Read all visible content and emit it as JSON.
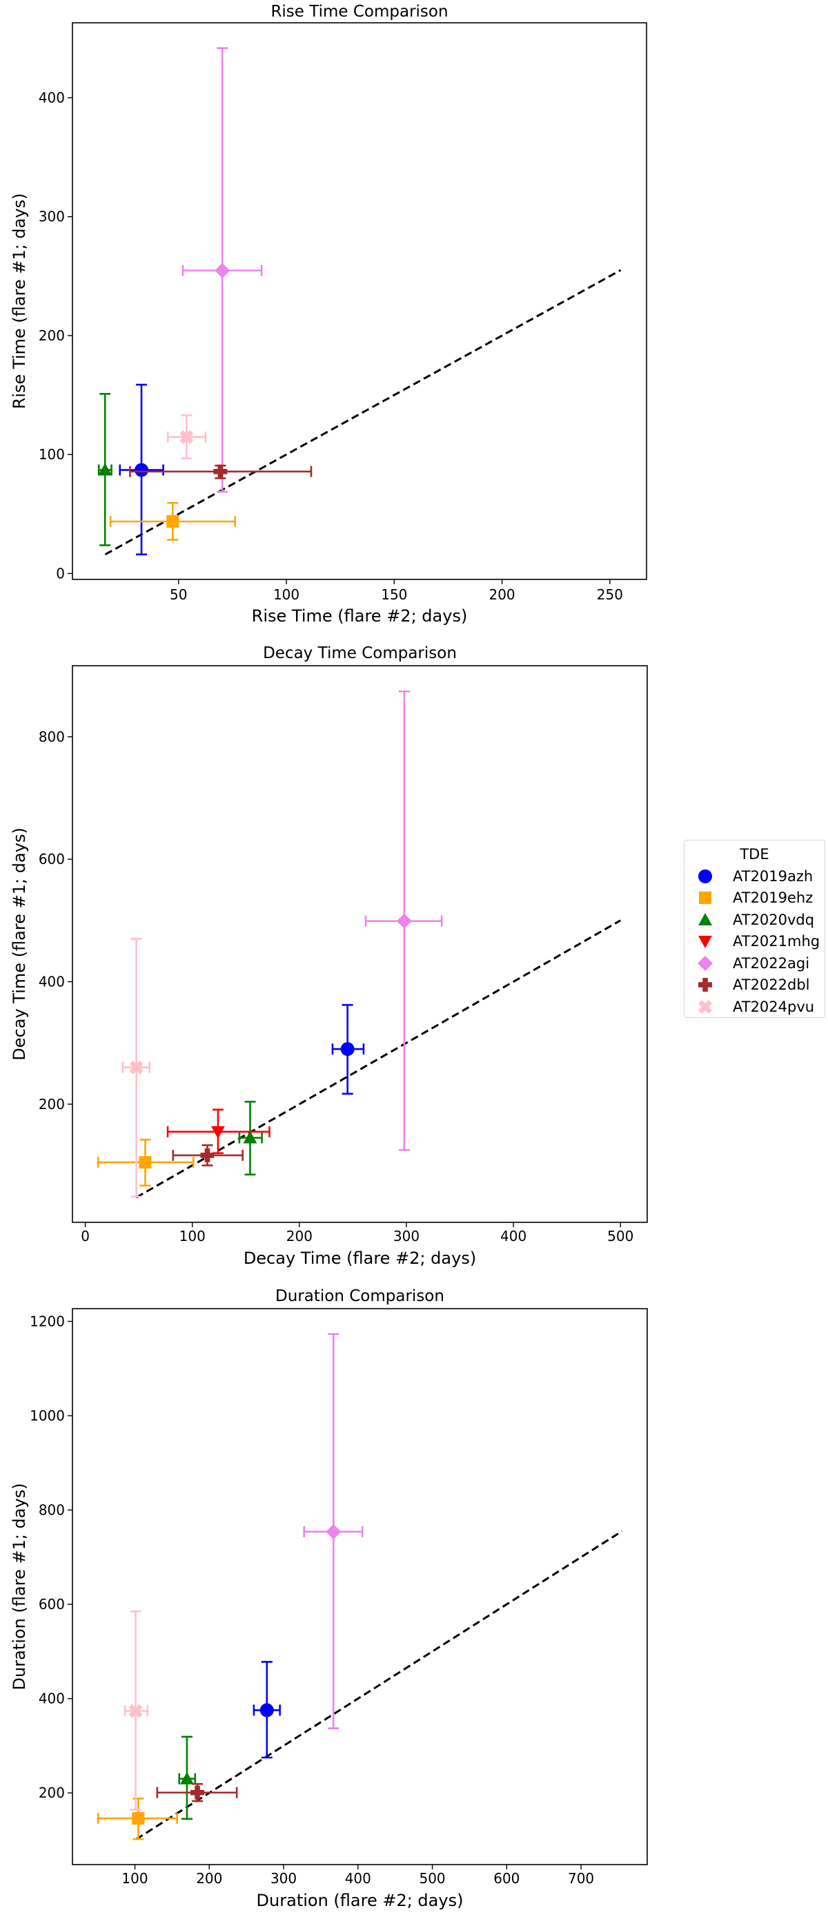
{
  "legend": {
    "title": "TDE",
    "entries": [
      {
        "name": "AT2019azh",
        "color": "#0000ff",
        "marker": "circle"
      },
      {
        "name": "AT2019ehz",
        "color": "#ffa500",
        "marker": "square"
      },
      {
        "name": "AT2020vdq",
        "color": "#008000",
        "marker": "triangle-up"
      },
      {
        "name": "AT2021mhg",
        "color": "#ff0000",
        "marker": "triangle-down"
      },
      {
        "name": "AT2022agi",
        "color": "#ee82ee",
        "marker": "diamond"
      },
      {
        "name": "AT2022dbl",
        "color": "#a52a2a",
        "marker": "plus"
      },
      {
        "name": "AT2024pvu",
        "color": "#ffc0cb",
        "marker": "x"
      }
    ]
  },
  "chart_data": [
    {
      "type": "scatter",
      "title": "Rise Time Comparison",
      "xlabel": "Rise Time (flare #2; days)",
      "ylabel": "Rise Time (flare #1; days)",
      "xlim": [
        0.8,
        267
      ],
      "ylim": [
        -5,
        463
      ],
      "xticks": [
        50,
        100,
        150,
        200,
        250
      ],
      "yticks": [
        0,
        100,
        200,
        300,
        400
      ],
      "grid": false,
      "one_to_one_line": [
        16,
        255
      ],
      "points": [
        {
          "name": "AT2019azh",
          "x": 32.8,
          "y": 87,
          "x_range": [
            22.8,
            42.9
          ],
          "y_range": [
            16,
            158.7
          ]
        },
        {
          "name": "AT2019ehz",
          "x": 47.3,
          "y": 43.7,
          "x_range": [
            18.4,
            76.2
          ],
          "y_range": [
            28.3,
            59.3
          ]
        },
        {
          "name": "AT2020vdq",
          "x": 15.9,
          "y": 87,
          "x_range": [
            13,
            18.9
          ],
          "y_range": [
            23.7,
            151
          ]
        },
        {
          "name": "AT2022agi",
          "x": 70.3,
          "y": 254.7,
          "x_range": [
            52,
            88.5
          ],
          "y_range": [
            68.7,
            441.7
          ]
        },
        {
          "name": "AT2022dbl",
          "x": 69.4,
          "y": 85.7,
          "x_range": [
            27.5,
            111.5
          ],
          "y_range": [
            80,
            90.7
          ]
        },
        {
          "name": "AT2024pvu",
          "x": 53.7,
          "y": 114.7,
          "x_range": [
            45,
            62.5
          ],
          "y_range": [
            96.7,
            133
          ]
        }
      ]
    },
    {
      "type": "scatter",
      "title": "Decay Time Comparison",
      "xlabel": "Decay Time (flare #2; days)",
      "ylabel": "Decay Time (flare #1; days)",
      "xlim": [
        -12,
        525
      ],
      "ylim": [
        7,
        916
      ],
      "xticks": [
        0,
        100,
        200,
        300,
        400,
        500
      ],
      "yticks": [
        200,
        400,
        600,
        800
      ],
      "grid": false,
      "one_to_one_line": [
        47.7,
        500
      ],
      "points": [
        {
          "name": "AT2019azh",
          "x": 245,
          "y": 290,
          "x_range": [
            231,
            260
          ],
          "y_range": [
            217,
            362
          ]
        },
        {
          "name": "AT2019ehz",
          "x": 56,
          "y": 105,
          "x_range": [
            12,
            101
          ],
          "y_range": [
            67,
            142
          ]
        },
        {
          "name": "AT2020vdq",
          "x": 154,
          "y": 145,
          "x_range": [
            144,
            165
          ],
          "y_range": [
            85,
            204
          ]
        },
        {
          "name": "AT2021mhg",
          "x": 124,
          "y": 155,
          "x_range": [
            77,
            172
          ],
          "y_range": [
            120,
            191
          ]
        },
        {
          "name": "AT2022agi",
          "x": 298,
          "y": 499,
          "x_range": [
            262,
            333
          ],
          "y_range": [
            125,
            874
          ]
        },
        {
          "name": "AT2022dbl",
          "x": 114,
          "y": 116.5,
          "x_range": [
            82,
            147
          ],
          "y_range": [
            100,
            133
          ]
        },
        {
          "name": "AT2024pvu",
          "x": 47.7,
          "y": 260,
          "x_range": [
            35,
            60
          ],
          "y_range": [
            49,
            470
          ]
        }
      ]
    },
    {
      "type": "scatter",
      "title": "Duration Comparison",
      "xlabel": "Duration (flare #2; days)",
      "ylabel": "Duration (flare #1; days)",
      "xlim": [
        16,
        789
      ],
      "ylim": [
        48,
        1227
      ],
      "xticks": [
        100,
        200,
        300,
        400,
        500,
        600,
        700
      ],
      "yticks": [
        200,
        400,
        600,
        800,
        1000,
        1200
      ],
      "grid": false,
      "one_to_one_line": [
        101.7,
        755
      ],
      "points": [
        {
          "name": "AT2019azh",
          "x": 277.5,
          "y": 375.5,
          "x_range": [
            260,
            295
          ],
          "y_range": [
            275,
            478
          ]
        },
        {
          "name": "AT2019ehz",
          "x": 104.5,
          "y": 146,
          "x_range": [
            50.6,
            156.7
          ],
          "y_range": [
            102,
            188
          ]
        },
        {
          "name": "AT2020vdq",
          "x": 170,
          "y": 230,
          "x_range": [
            159.6,
            181
          ],
          "y_range": [
            145,
            319
          ]
        },
        {
          "name": "AT2022agi",
          "x": 367,
          "y": 754,
          "x_range": [
            327.5,
            406
          ],
          "y_range": [
            337,
            1173
          ]
        },
        {
          "name": "AT2022dbl",
          "x": 184,
          "y": 200.7,
          "x_range": [
            130,
            237
          ],
          "y_range": [
            182.6,
            219
          ]
        },
        {
          "name": "AT2024pvu",
          "x": 101,
          "y": 374,
          "x_range": [
            86.5,
            117
          ],
          "y_range": [
            164.5,
            585
          ]
        }
      ]
    }
  ]
}
